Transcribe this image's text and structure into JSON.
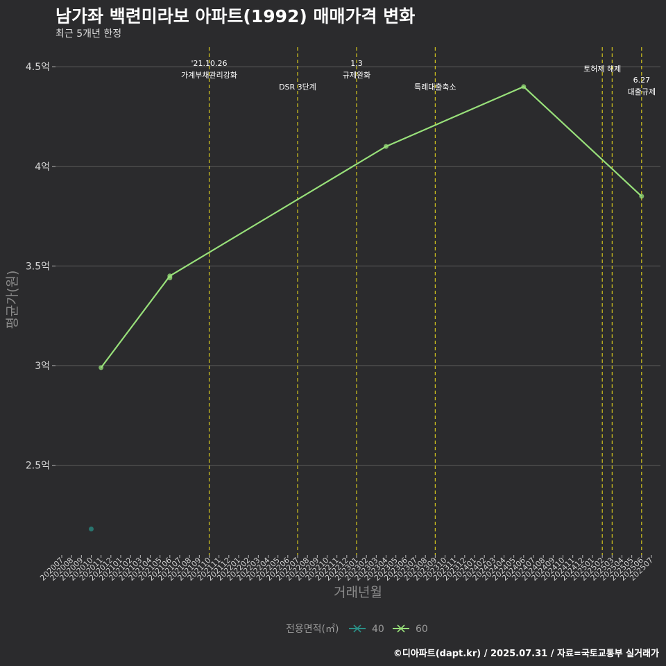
{
  "header": {
    "title": "남가좌 백련미라보 아파트(1992) 매매가격 변화",
    "subtitle": "최근 5개년 한정"
  },
  "footer": "©디아파트(dapt.kr) / 2025.07.31 / 자료=국토교통부 실거래가",
  "chart_data": {
    "type": "line",
    "xlabel": "거래년월",
    "ylabel": "평균가(원)",
    "ylim": [
      2.1,
      4.6
    ],
    "yticks": [
      {
        "value": 2.5,
        "label": "2.5억"
      },
      {
        "value": 3.0,
        "label": "3억"
      },
      {
        "value": 3.5,
        "label": "3.5억"
      },
      {
        "value": 4.0,
        "label": "4억"
      },
      {
        "value": 4.5,
        "label": "4.5억"
      }
    ],
    "categories": [
      "202007",
      "202008",
      "202009",
      "202010",
      "202011",
      "202012",
      "202101",
      "202102",
      "202103",
      "202104",
      "202105",
      "202106",
      "202107",
      "202108",
      "202109",
      "202110",
      "202111",
      "202112",
      "202201",
      "202202",
      "202203",
      "202204",
      "202205",
      "202206",
      "202207",
      "202208",
      "202209",
      "202210",
      "202211",
      "202212",
      "202301",
      "202302",
      "202303",
      "202304",
      "202305",
      "202306",
      "202307",
      "202308",
      "202309",
      "202310",
      "202311",
      "202312",
      "202401",
      "202402",
      "202403",
      "202404",
      "202405",
      "202406",
      "202407",
      "202408",
      "202409",
      "202410",
      "202411",
      "202412",
      "202501",
      "202502",
      "202503",
      "202504",
      "202505",
      "202506",
      "202507"
    ],
    "series": [
      {
        "name": "40",
        "color": "#2a8f86",
        "points": [
          {
            "x": "202010",
            "y": 2.18
          }
        ],
        "line": false
      },
      {
        "name": "60",
        "color": "#98e07a",
        "points": [
          {
            "x": "202011",
            "y": 2.99
          },
          {
            "x": "202106",
            "y": 3.45
          },
          {
            "x": "202106",
            "y": 3.44
          },
          {
            "x": "202304",
            "y": 4.1
          },
          {
            "x": "202406",
            "y": 4.4
          },
          {
            "x": "202506",
            "y": 3.85
          }
        ],
        "line": true
      }
    ],
    "events": [
      {
        "x": "202110",
        "lines": [
          "'21.10.26",
          "가계부채관리강화"
        ],
        "row": 0
      },
      {
        "x": "202207",
        "lines": [
          "DSR 3단계"
        ],
        "row": 2
      },
      {
        "x": "202301",
        "lines": [
          "1.3",
          "규제완화"
        ],
        "row": 0
      },
      {
        "x": "202309",
        "lines": [
          "특례대출축소"
        ],
        "row": 2
      },
      {
        "x": "202502",
        "lines": [
          "토허제 해제"
        ],
        "row": 1
      },
      {
        "x": "202503",
        "lines": [],
        "row": 1
      },
      {
        "x": "202506",
        "lines": [
          "6.27",
          "대출규제"
        ],
        "row": 3
      }
    ],
    "legend": {
      "title": "전용면적(㎡)",
      "items": [
        "40",
        "60"
      ]
    },
    "grid": true
  }
}
